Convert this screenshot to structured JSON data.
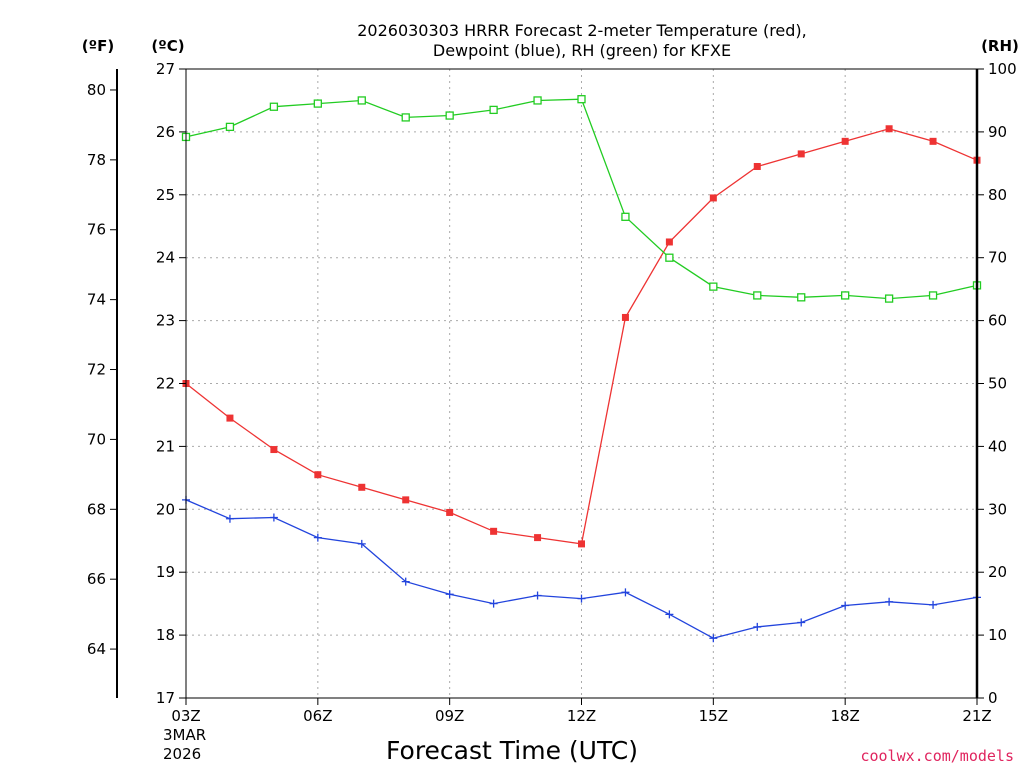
{
  "header": {
    "title_line1": "2026030303 HRRR Forecast 2-meter Temperature (red),",
    "title_line2": "Dewpoint (blue), RH (green) for KFXE"
  },
  "units": {
    "fahrenheit": "(ºF)",
    "celsius": "(ºC)",
    "rh": "(RH)"
  },
  "footer": {
    "date_line1": "3MAR",
    "date_line2": "2026",
    "credit": "coolwx.com/models",
    "credit_color": "#e0245e"
  },
  "chart_data": {
    "type": "line",
    "title": "2026030303 HRRR Forecast 2-meter Temperature (red), Dewpoint (blue), RH (green) for KFXE",
    "xlabel": "Forecast Time (UTC)",
    "x": [
      3,
      4,
      5,
      6,
      7,
      8,
      9,
      10,
      11,
      12,
      13,
      14,
      15,
      16,
      17,
      18,
      19,
      20,
      21
    ],
    "xlim": [
      3,
      21
    ],
    "xticks": [
      3,
      6,
      9,
      12,
      15,
      18,
      21
    ],
    "xtick_labels": [
      "03Z",
      "06Z",
      "09Z",
      "12Z",
      "15Z",
      "18Z",
      "21Z"
    ],
    "ylim_celsius": [
      17,
      27
    ],
    "yticks_celsius": [
      17,
      18,
      19,
      20,
      21,
      22,
      23,
      24,
      25,
      26,
      27
    ],
    "ylim_fahrenheit": [
      62.6,
      80.6
    ],
    "yticks_fahrenheit": [
      64,
      66,
      68,
      70,
      72,
      74,
      76,
      78,
      80
    ],
    "ylim_rh": [
      0,
      100
    ],
    "yticks_rh": [
      0,
      10,
      20,
      30,
      40,
      50,
      60,
      70,
      80,
      90,
      100
    ],
    "grid": true,
    "series": [
      {
        "name": "Temperature",
        "axis": "celsius",
        "color": "#ee3333",
        "marker": "filled-square",
        "values": [
          22.0,
          21.45,
          20.95,
          20.55,
          20.35,
          20.15,
          19.95,
          19.65,
          19.55,
          19.45,
          23.05,
          24.25,
          24.95,
          25.45,
          25.65,
          25.85,
          26.05,
          25.85,
          25.55
        ]
      },
      {
        "name": "Dewpoint",
        "axis": "celsius",
        "color": "#2244dd",
        "marker": "plus",
        "values": [
          20.15,
          19.85,
          19.87,
          19.55,
          19.45,
          18.85,
          18.65,
          18.5,
          18.63,
          18.58,
          18.68,
          18.33,
          17.95,
          18.13,
          18.2,
          18.47,
          18.53,
          18.48,
          18.6
        ]
      },
      {
        "name": "RH",
        "axis": "rh",
        "color": "#22cc22",
        "marker": "open-square",
        "values": [
          89.2,
          90.8,
          94.0,
          94.5,
          95.0,
          92.3,
          92.6,
          93.5,
          95.0,
          95.2,
          76.5,
          70.0,
          65.4,
          64.0,
          63.7,
          64.0,
          63.5,
          64.0,
          65.6
        ]
      }
    ]
  }
}
